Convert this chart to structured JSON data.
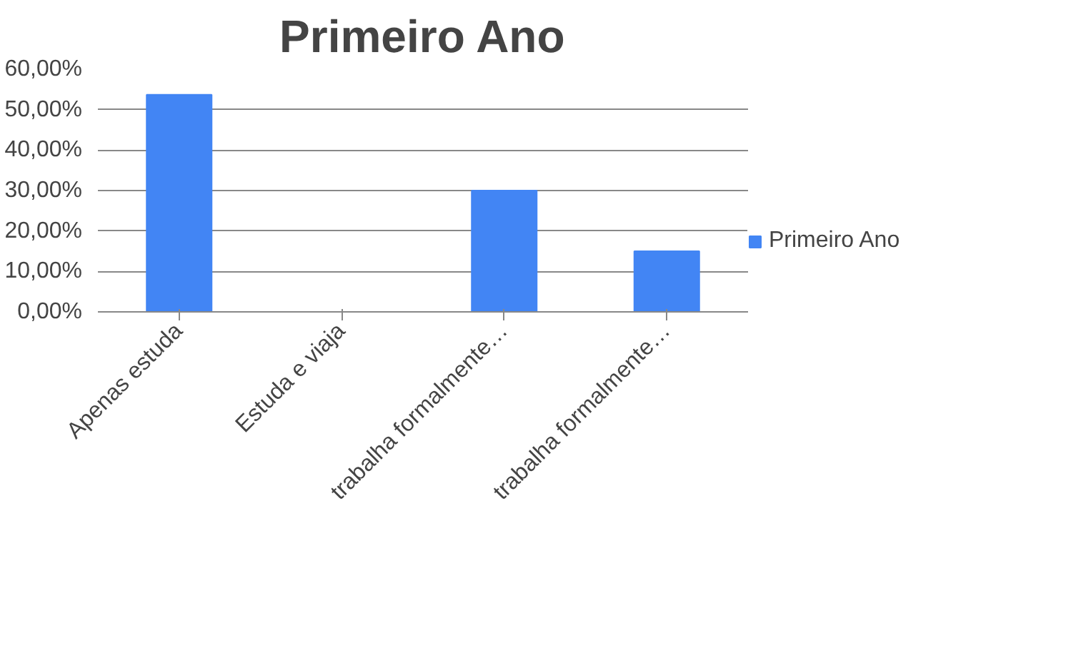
{
  "chart_data": {
    "type": "bar",
    "title": "Primeiro Ano",
    "categories": [
      "Apenas estuda",
      "Estuda e viaja",
      "trabalha formalmente…",
      "trabalha formalmente…"
    ],
    "series": [
      {
        "name": "Primeiro Ano",
        "color": "#4285f4",
        "values": [
          53.7,
          0,
          30,
          15
        ]
      }
    ],
    "ylim": [
      0,
      60
    ],
    "yticks": [
      {
        "value": 0,
        "label": "0,00%"
      },
      {
        "value": 10,
        "label": "10,00%"
      },
      {
        "value": 20,
        "label": "20,00%"
      },
      {
        "value": 30,
        "label": "30,00%"
      },
      {
        "value": 40,
        "label": "40,00%"
      },
      {
        "value": 50,
        "label": "50,00%"
      },
      {
        "value": 60,
        "label": "60,00%"
      }
    ],
    "grid": "y",
    "legend": "right"
  }
}
